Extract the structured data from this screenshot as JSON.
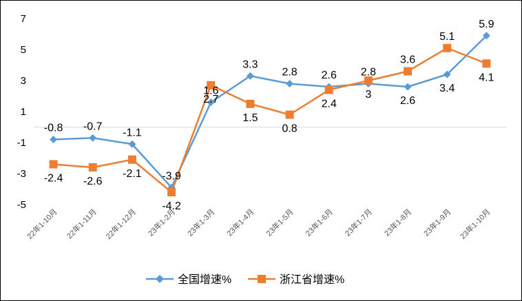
{
  "chart_data": {
    "type": "line",
    "categories": [
      "22年1-10月",
      "22年1-11月",
      "22年1-12月",
      "23年1-2月",
      "23年1-3月",
      "23年1-4月",
      "23年1-5月",
      "23年1-6月",
      "23年1-7月",
      "23年1-8月",
      "23年1-9月",
      "23年1-10月"
    ],
    "series": [
      {
        "name": "全国增速%",
        "color": "#5B9BD5",
        "marker": "diamond",
        "values": [
          -0.8,
          -0.7,
          -1.1,
          -3.9,
          1.6,
          3.3,
          2.8,
          2.6,
          2.8,
          2.6,
          3.4,
          5.9
        ],
        "labels": [
          "-0.8",
          "-0.7",
          "-1.1",
          "-3.9",
          "1.6",
          "3.3",
          "2.8",
          "2.6",
          "2.8",
          "2.6",
          "3.4",
          "5.9"
        ]
      },
      {
        "name": "浙江省增速%",
        "color": "#ED7D31",
        "marker": "square",
        "values": [
          -2.4,
          -2.6,
          -2.1,
          -4.2,
          2.7,
          1.5,
          0.8,
          2.4,
          3.0,
          3.6,
          5.1,
          4.1
        ],
        "labels": [
          "-2.4",
          "-2.6",
          "-2.1",
          "-4.2",
          "2.7",
          "1.5",
          "0.8",
          "2.4",
          "3",
          "3.6",
          "5.1",
          "4.1"
        ]
      }
    ],
    "yticks": [
      "7",
      "5",
      "3",
      "1",
      "-1",
      "-3",
      "-5"
    ],
    "ylim": [
      -5,
      7
    ],
    "legend": "bottom"
  }
}
